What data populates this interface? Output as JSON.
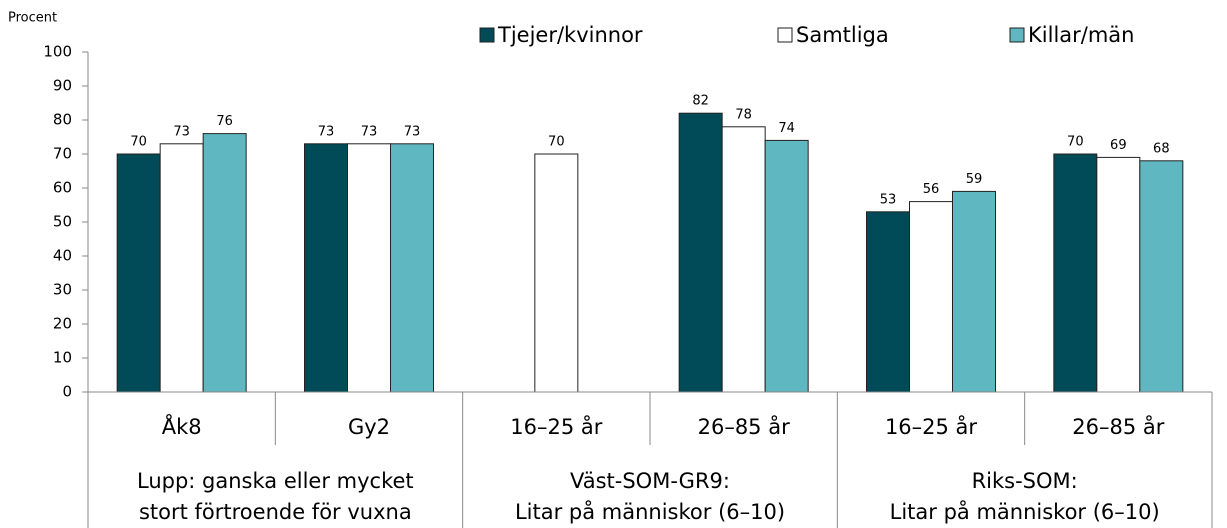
{
  "chart_data": {
    "type": "bar",
    "ylabel": "Procent",
    "ylim": [
      0,
      100
    ],
    "yticks": [
      0,
      10,
      20,
      30,
      40,
      50,
      60,
      70,
      80,
      90,
      100
    ],
    "legend": "top",
    "groups": [
      {
        "label": [
          "Lupp: ganska eller mycket",
          "stort förtroende för vuxna"
        ],
        "categories": [
          "Åk8",
          "Gy2"
        ]
      },
      {
        "label": [
          "Väst-SOM-GR9:",
          "Litar på människor (6–10)"
        ],
        "categories": [
          "16–25 år",
          "26–85 år"
        ]
      },
      {
        "label": [
          "Riks-SOM:",
          "Litar på människor (6–10)"
        ],
        "categories": [
          "16–25 år",
          "26–85 år"
        ]
      }
    ],
    "series": [
      {
        "name": "Tjejer/kvinnor",
        "color": "#004b57",
        "values": [
          70,
          73,
          null,
          82,
          53,
          70
        ]
      },
      {
        "name": "Samtliga",
        "color": "#ffffff",
        "values": [
          73,
          73,
          70,
          78,
          56,
          69
        ]
      },
      {
        "name": "Killar/män",
        "color": "#5fb8c1",
        "values": [
          76,
          73,
          null,
          74,
          59,
          68
        ]
      }
    ]
  }
}
